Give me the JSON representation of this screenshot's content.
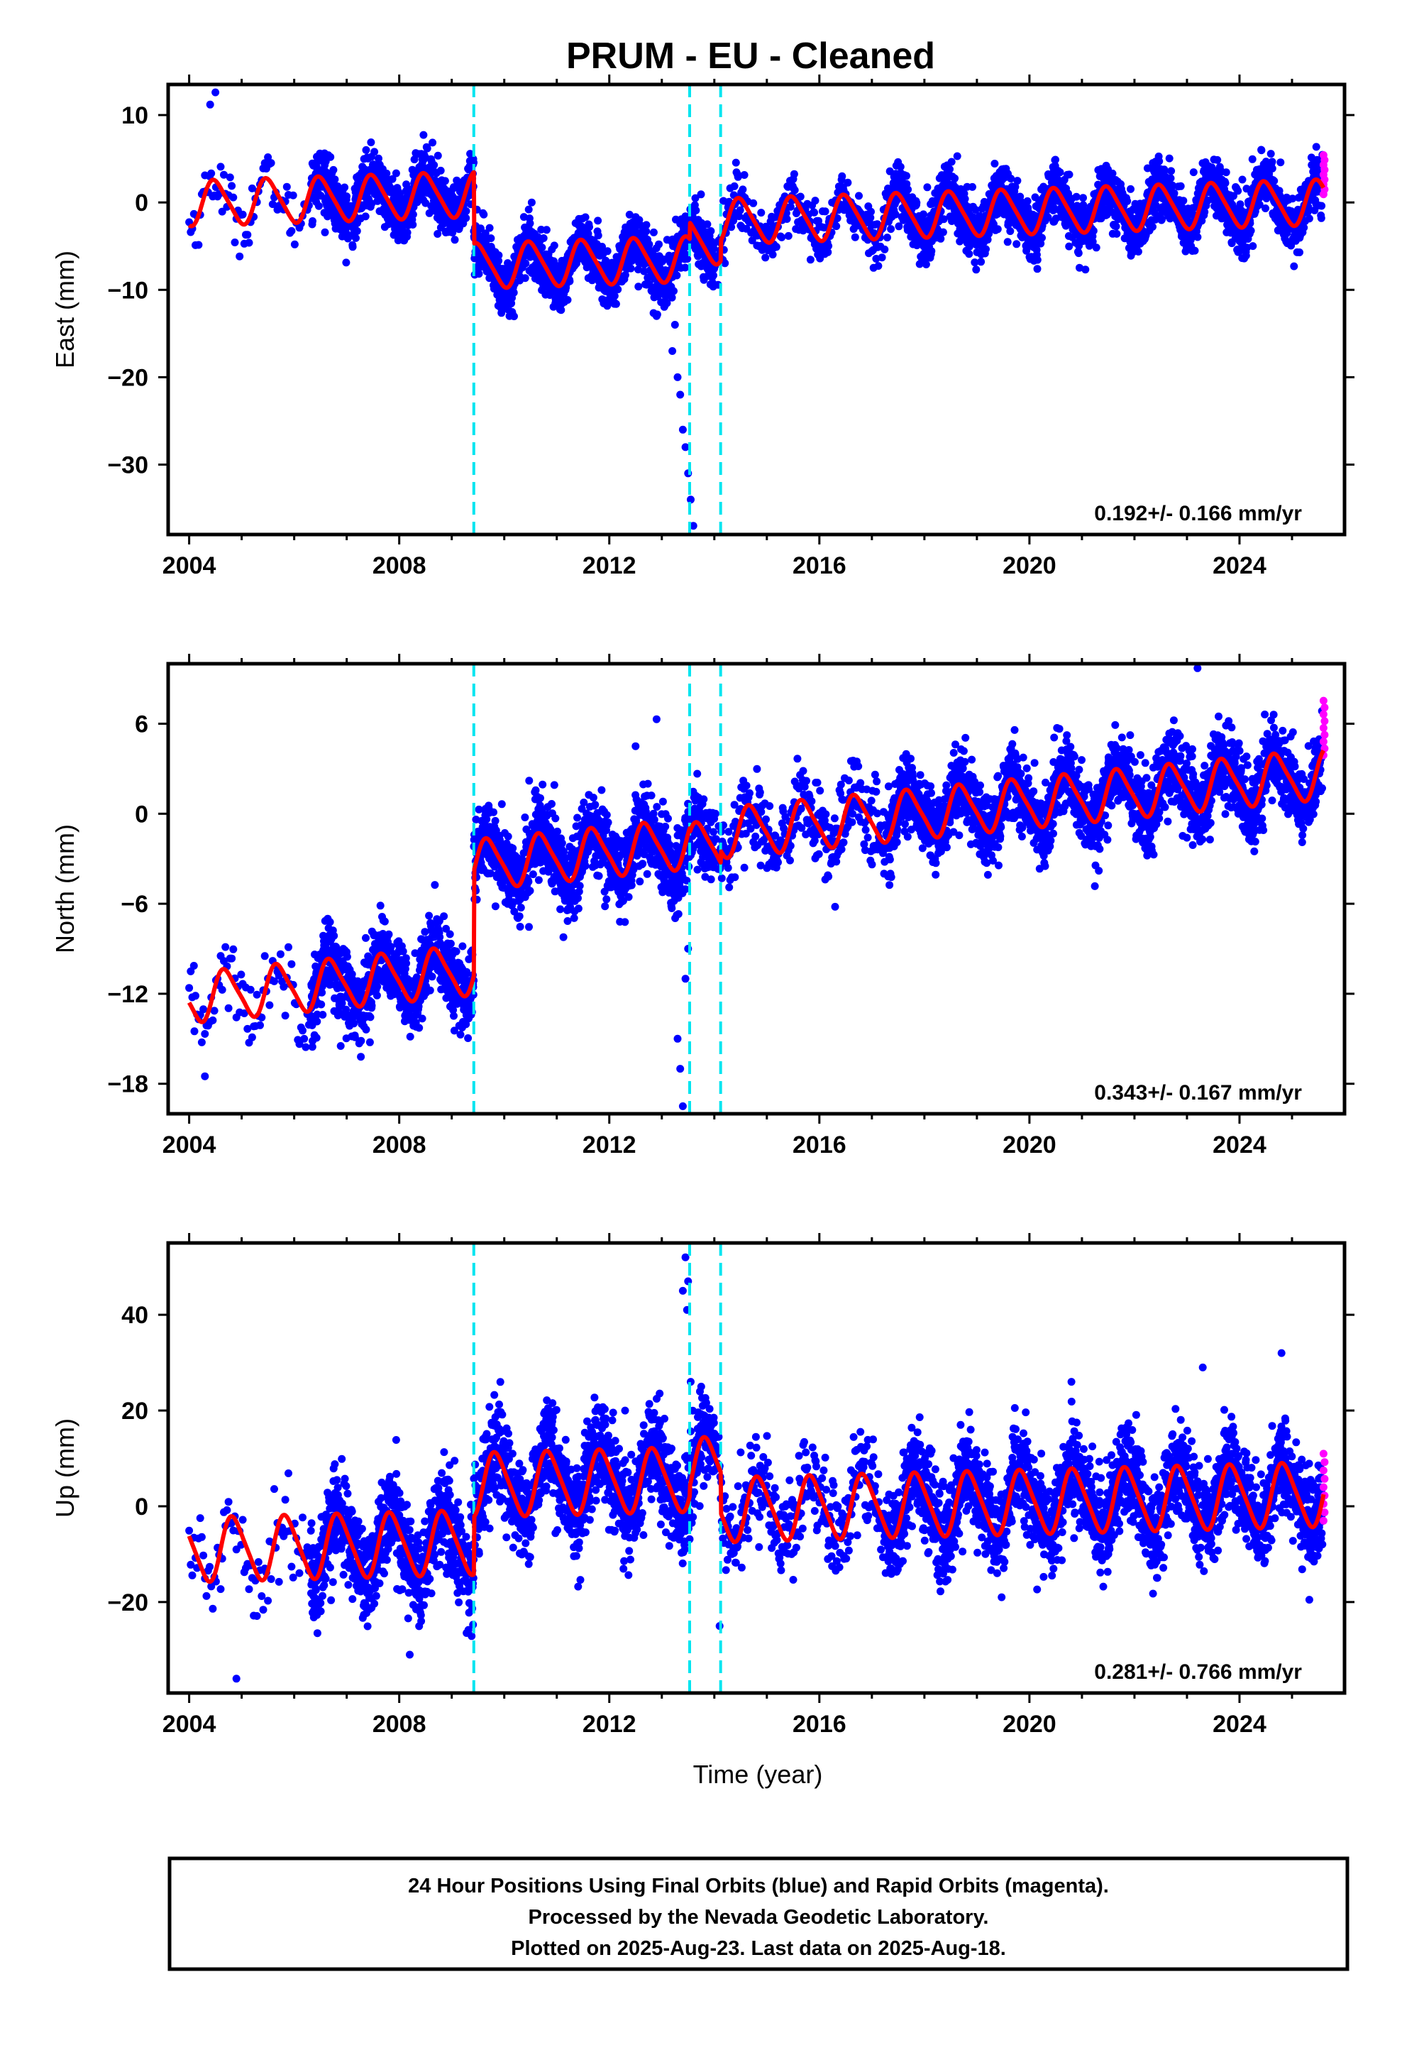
{
  "chart_data": [
    {
      "type": "scatter",
      "title": "PRUM  - EU - Cleaned",
      "ylabel": "East (mm)",
      "xlabel": "",
      "xlim": [
        2003.6,
        2026.0
      ],
      "ylim": [
        -38,
        13.5
      ],
      "xticks": [
        2004,
        2008,
        2012,
        2016,
        2020,
        2024
      ],
      "yticks": [
        10,
        0,
        -10,
        -20,
        -30
      ],
      "rate_text": "0.192+/- 0.166 mm/yr",
      "offsets": [
        2009.42,
        2013.53,
        2014.12
      ],
      "model": {
        "trend": 0.192,
        "annual_amp": 2.5,
        "semiannual_amp": 0.4,
        "phase": 0.25,
        "noise": 1.6,
        "segment_levels": [
          2.0,
          -6.2,
          -4.3,
          -2.0
        ]
      },
      "series": [
        {
          "name": "Final Orbits",
          "color": "#0000ff"
        },
        {
          "name": "Rapid Orbits",
          "color": "#ff00ff"
        },
        {
          "name": "Model",
          "color": "#ff0000"
        }
      ],
      "outliers": [
        [
          2013.3,
          -20
        ],
        [
          2013.35,
          -22
        ],
        [
          2013.4,
          -26
        ],
        [
          2013.45,
          -28
        ],
        [
          2013.5,
          -31
        ],
        [
          2013.55,
          -34
        ],
        [
          2013.6,
          -37
        ],
        [
          2013.2,
          -17
        ],
        [
          2013.25,
          -14
        ],
        [
          2012.1,
          -11.5
        ],
        [
          2010.1,
          -13
        ],
        [
          2012.9,
          -13
        ],
        [
          2004.5,
          12.6
        ],
        [
          2004.4,
          11.2
        ]
      ]
    },
    {
      "type": "scatter",
      "title": "",
      "ylabel": "North (mm)",
      "xlabel": "",
      "xlim": [
        2003.6,
        2026.0
      ],
      "ylim": [
        -20,
        10
      ],
      "xticks": [
        2004,
        2008,
        2012,
        2016,
        2020,
        2024
      ],
      "yticks": [
        6,
        0,
        -6,
        -12,
        -18
      ],
      "rate_text": "0.343+/- 0.167 mm/yr",
      "offsets": [
        2009.42,
        2013.53,
        2014.12
      ],
      "model": {
        "trend": 0.343,
        "annual_amp": 1.6,
        "semiannual_amp": 0.3,
        "phase": 0.45,
        "noise": 1.3,
        "segment_levels": [
          -8.5,
          -1.5,
          -1.8,
          -1.0
        ]
      },
      "series": [
        {
          "name": "Final Orbits",
          "color": "#0000ff"
        },
        {
          "name": "Rapid Orbits",
          "color": "#ff00ff"
        },
        {
          "name": "Model",
          "color": "#ff0000"
        }
      ],
      "outliers": [
        [
          2013.3,
          -15
        ],
        [
          2013.35,
          -17
        ],
        [
          2013.4,
          -19.5
        ],
        [
          2013.45,
          -11
        ],
        [
          2013.5,
          -9
        ],
        [
          2012.5,
          4.5
        ],
        [
          2012.9,
          6.3
        ],
        [
          2023.2,
          10
        ],
        [
          2004.1,
          -14.5
        ],
        [
          2004.3,
          -17.5
        ],
        [
          2016.3,
          -6.2
        ]
      ]
    },
    {
      "type": "scatter",
      "title": "",
      "ylabel": "Up (mm)",
      "xlabel": "Time (year)",
      "xlim": [
        2003.6,
        2026.0
      ],
      "ylim": [
        -39,
        55
      ],
      "xticks": [
        2004,
        2008,
        2012,
        2016,
        2020,
        2024
      ],
      "yticks": [
        40,
        20,
        0,
        -20
      ],
      "rate_text": "0.281+/- 0.766 mm/yr",
      "offsets": [
        2009.42,
        2013.53,
        2014.12
      ],
      "model": {
        "trend": 0.281,
        "annual_amp": 6.5,
        "semiannual_amp": 1.0,
        "phase": 0.6,
        "noise": 5.0,
        "segment_levels": [
          -6.0,
          6.0,
          8.0,
          -0.5
        ]
      },
      "series": [
        {
          "name": "Final Orbits",
          "color": "#0000ff"
        },
        {
          "name": "Rapid Orbits",
          "color": "#ff00ff"
        },
        {
          "name": "Model",
          "color": "#ff0000"
        }
      ],
      "outliers": [
        [
          2013.45,
          52
        ],
        [
          2013.5,
          47
        ],
        [
          2013.4,
          45
        ],
        [
          2013.48,
          41
        ],
        [
          2013.55,
          26
        ],
        [
          2014.1,
          -25
        ],
        [
          2004.9,
          -36
        ],
        [
          2008.2,
          -31
        ],
        [
          2020.8,
          26
        ],
        [
          2024.8,
          32
        ],
        [
          2023.3,
          29
        ],
        [
          2012.3,
          20
        ]
      ]
    }
  ],
  "footer": {
    "line1": "24 Hour Positions Using Final Orbits (blue) and Rapid Orbits (magenta).",
    "line2": "Processed by the Nevada Geodetic Laboratory.",
    "line3": "Plotted on 2025-Aug-23. Last data on 2025-Aug-18."
  }
}
